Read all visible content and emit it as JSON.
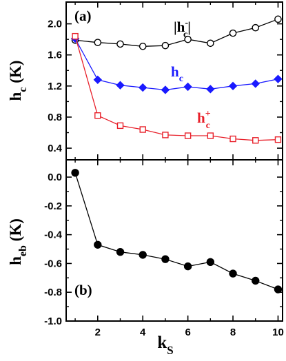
{
  "chart_data": [
    {
      "type": "line",
      "panel_label": "(a)",
      "ylabel": {
        "main": "h",
        "sub": "c",
        "unit": " (K)"
      },
      "xlim": [
        0.6,
        10.2
      ],
      "ylim": [
        0.25,
        2.28
      ],
      "xticks": [
        2,
        4,
        6,
        8,
        10
      ],
      "yticks": [
        0.4,
        0.8,
        1.2,
        1.6,
        2.0
      ],
      "ytick_labels": [
        "0.4",
        "0.8",
        "1.2",
        "1.6",
        "2.0"
      ],
      "grid": false,
      "series": [
        {
          "key": "abs_hc_minus",
          "label": {
            "pre": "|h",
            "sup": "-",
            "sub": "c",
            "post": "|"
          },
          "color": "#000000",
          "marker": "circle-open",
          "x": [
            1,
            2,
            3,
            4,
            5,
            6,
            7,
            8,
            9,
            10
          ],
          "y": [
            1.79,
            1.76,
            1.74,
            1.71,
            1.72,
            1.8,
            1.75,
            1.88,
            1.95,
            2.06
          ]
        },
        {
          "key": "hc",
          "label": {
            "pre": "h",
            "sup": "",
            "sub": "c",
            "post": ""
          },
          "color": "#1a1aff",
          "marker": "diamond-filled",
          "x": [
            1,
            2,
            3,
            4,
            5,
            6,
            7,
            8,
            9,
            10
          ],
          "y": [
            1.81,
            1.28,
            1.21,
            1.18,
            1.15,
            1.19,
            1.16,
            1.2,
            1.23,
            1.29
          ]
        },
        {
          "key": "hc_plus",
          "label": {
            "pre": "h",
            "sup": "+",
            "sub": "c",
            "post": ""
          },
          "color": "#e8202a",
          "marker": "square-open",
          "x": [
            1,
            2,
            3,
            4,
            5,
            6,
            7,
            8,
            9,
            10
          ],
          "y": [
            1.84,
            0.82,
            0.69,
            0.64,
            0.57,
            0.56,
            0.56,
            0.52,
            0.5,
            0.51
          ]
        }
      ]
    },
    {
      "type": "line",
      "panel_label": "(b)",
      "ylabel": {
        "main": "h",
        "sub": "eb",
        "unit": " (K)"
      },
      "xlabel": {
        "main": "k",
        "sub": "S"
      },
      "xlim": [
        0.6,
        10.2
      ],
      "ylim": [
        -1.0,
        0.12
      ],
      "xticks": [
        2,
        4,
        6,
        8,
        10
      ],
      "xtick_labels": [
        "2",
        "4",
        "6",
        "8",
        "10"
      ],
      "yticks": [
        0.0,
        -0.2,
        -0.4,
        -0.6,
        -0.8,
        -1.0
      ],
      "ytick_labels": [
        "0.0",
        "-0.2",
        "-0.4",
        "-0.6",
        "-0.8",
        "-1.0"
      ],
      "grid": false,
      "series": [
        {
          "key": "heb",
          "color": "#000000",
          "marker": "circle-filled",
          "x": [
            1,
            2,
            3,
            4,
            5,
            6,
            7,
            8,
            9,
            10
          ],
          "y": [
            0.03,
            -0.47,
            -0.52,
            -0.54,
            -0.57,
            -0.62,
            -0.59,
            -0.67,
            -0.72,
            -0.78
          ]
        }
      ]
    }
  ]
}
